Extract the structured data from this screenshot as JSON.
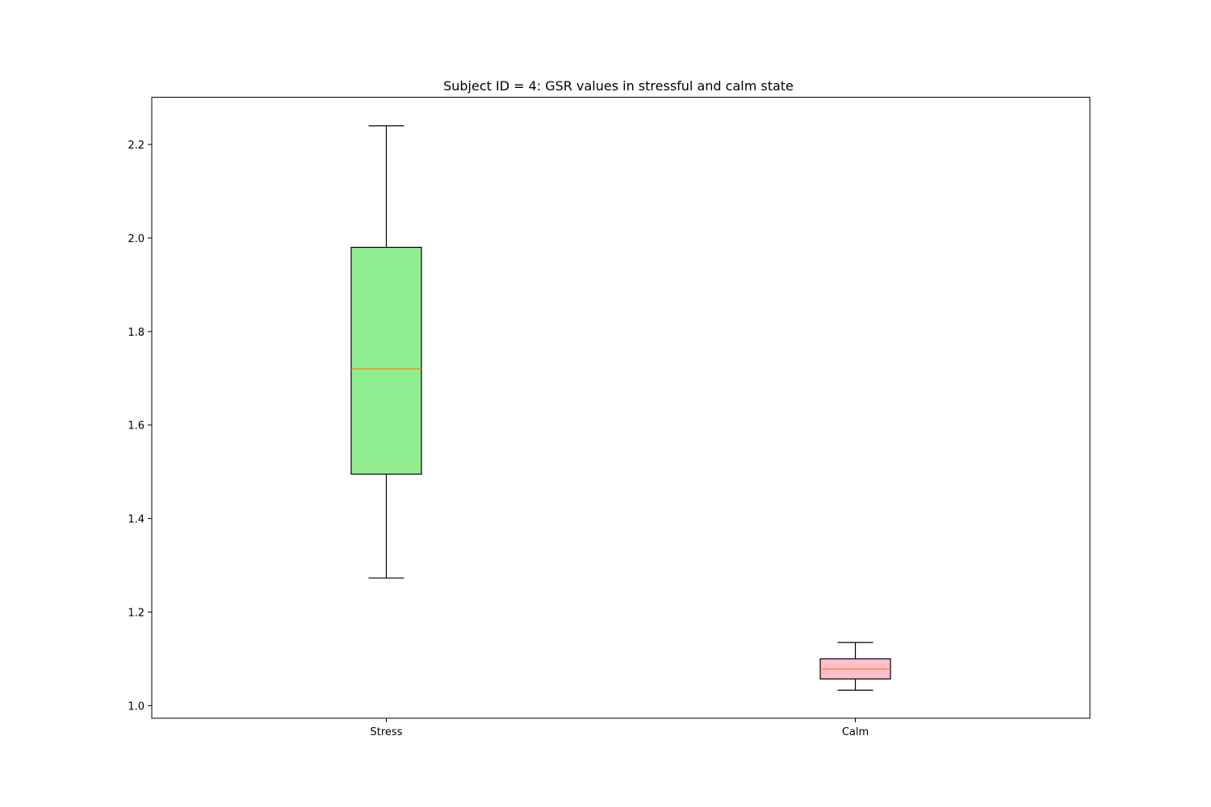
{
  "chart_data": {
    "type": "box",
    "title": "Subject ID = 4: GSR values in stressful and calm state",
    "xlabel": "",
    "ylabel": "",
    "ylim": [
      0.973,
      2.301
    ],
    "yticks": [
      1.0,
      1.2,
      1.4,
      1.6,
      1.8,
      2.0,
      2.2
    ],
    "ytick_labels": [
      "1.0",
      "1.2",
      "1.4",
      "1.6",
      "1.8",
      "2.0",
      "2.2"
    ],
    "grid": false,
    "categories": [
      "Stress",
      "Calm"
    ],
    "boxes": [
      {
        "name": "Stress",
        "whisker_low": 1.273,
        "q1": 1.495,
        "median": 1.72,
        "q3": 1.98,
        "whisker_high": 2.24,
        "fill": "#90ee90"
      },
      {
        "name": "Calm",
        "whisker_low": 1.033,
        "q1": 1.057,
        "median": 1.078,
        "q3": 1.1,
        "whisker_high": 1.135,
        "fill": "#ffc0cb"
      }
    ],
    "median_color": "#ff7f0e",
    "box_edge_color": "#000000"
  }
}
